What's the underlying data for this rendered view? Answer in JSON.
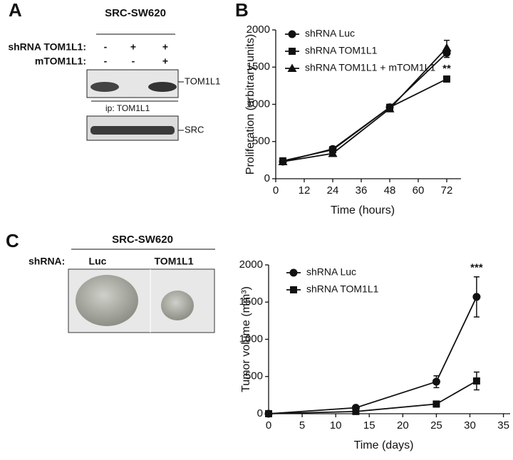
{
  "panel_labels": [
    "A",
    "B",
    "C"
  ],
  "blot": {
    "title": "SRC-SW620",
    "rows": [
      {
        "label": "shRNA TOM1L1:",
        "cells": [
          "-",
          "+",
          "+"
        ]
      },
      {
        "label": "mTOM1L1:",
        "cells": [
          "-",
          "-",
          "+"
        ]
      }
    ],
    "bands": [
      "TOM1L1",
      "SRC"
    ],
    "ip": "ip: TOM1L1"
  },
  "tumor": {
    "title": "SRC-SW620",
    "row_label": "shRNA:",
    "groups": [
      "Luc",
      "TOM1L1"
    ]
  },
  "chart_data": [
    {
      "type": "line",
      "x_label": "Time (hours)",
      "y_label": "Proliferation (arbitrary units)",
      "x": [
        3,
        24,
        48,
        72
      ],
      "xlim": [
        0,
        78
      ],
      "xticks": [
        0,
        12,
        24,
        36,
        48,
        60,
        72
      ],
      "ylim": [
        0,
        2000
      ],
      "yticks": [
        0,
        500,
        1000,
        1500,
        2000
      ],
      "annotation": "**",
      "series": [
        {
          "name": "shRNA Luc",
          "marker": "circle",
          "color": "#111111",
          "values": [
            230,
            400,
            960,
            1690
          ],
          "errors": [
            20,
            20,
            25,
            60
          ]
        },
        {
          "name": "shRNA TOM1L1",
          "marker": "square",
          "color": "#111111",
          "values": [
            240,
            390,
            960,
            1340
          ],
          "errors": [
            20,
            20,
            25,
            40
          ]
        },
        {
          "name": "shRNA TOM1L1 + mTOM1L1",
          "marker": "triangle",
          "color": "#111111",
          "values": [
            230,
            340,
            940,
            1760
          ],
          "errors": [
            20,
            20,
            25,
            100
          ]
        }
      ]
    },
    {
      "type": "line",
      "x_label": "Time (days)",
      "y_label": "Tumor volume (mm³)",
      "x": [
        0,
        13,
        25,
        31
      ],
      "xlim": [
        0,
        36
      ],
      "xticks": [
        0,
        5,
        10,
        15,
        20,
        25,
        30,
        35
      ],
      "ylim": [
        0,
        2000
      ],
      "yticks": [
        0,
        500,
        1000,
        1500,
        2000
      ],
      "annotation": "***",
      "series": [
        {
          "name": "shRNA Luc",
          "marker": "circle",
          "color": "#111111",
          "values": [
            0,
            80,
            430,
            1570
          ],
          "errors": [
            0,
            30,
            80,
            270
          ]
        },
        {
          "name": "shRNA TOM1L1",
          "marker": "square",
          "color": "#111111",
          "values": [
            0,
            30,
            130,
            440
          ],
          "errors": [
            0,
            15,
            40,
            120
          ]
        }
      ]
    }
  ]
}
